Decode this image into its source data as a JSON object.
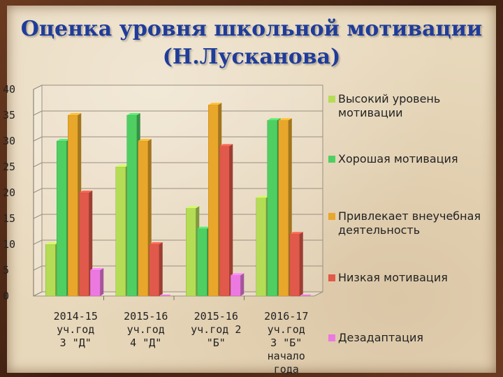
{
  "title": {
    "line1": "Оценка уровня школьной мотивации",
    "line2": "(Н.Лусканова)"
  },
  "colors": {
    "series": [
      "#b5dc55",
      "#4fcf62",
      "#e8a72b",
      "#e0594a",
      "#ec79e0"
    ]
  },
  "chart_data": {
    "type": "bar",
    "categories": [
      [
        "2014-15",
        "уч.год",
        "3 \"Д\""
      ],
      [
        "2015-16",
        "уч.год",
        "4 \"Д\""
      ],
      [
        "2015-16",
        "уч.год 2",
        "\"Б\""
      ],
      [
        "2016-17",
        "уч.год",
        "3 \"Б\"",
        "начало",
        "года"
      ]
    ],
    "series": [
      {
        "name": "Высокий уровень мотивации",
        "values": [
          10,
          25,
          17,
          19
        ]
      },
      {
        "name": "Хорошая мотивация",
        "values": [
          30,
          35,
          13,
          34
        ]
      },
      {
        "name": "Привлекает внеучебная деятельность",
        "values": [
          35,
          30,
          37,
          34
        ]
      },
      {
        "name": "Низкая мотивация",
        "values": [
          20,
          10,
          29,
          12
        ]
      },
      {
        "name": "Дезадаптация",
        "values": [
          5,
          0,
          4,
          0
        ]
      }
    ],
    "ylim": [
      0,
      40
    ],
    "yticks": [
      0,
      5,
      10,
      15,
      20,
      25,
      30,
      35,
      40
    ],
    "grid": true,
    "legend": "right"
  },
  "legend": [
    [
      "Высокий уровень",
      "мотивации"
    ],
    [
      "Хорошая мотивация"
    ],
    [
      "Привлекает внеучебная",
      "деятельность"
    ],
    [
      "Низкая мотивация"
    ],
    [
      "Дезадаптация"
    ]
  ]
}
